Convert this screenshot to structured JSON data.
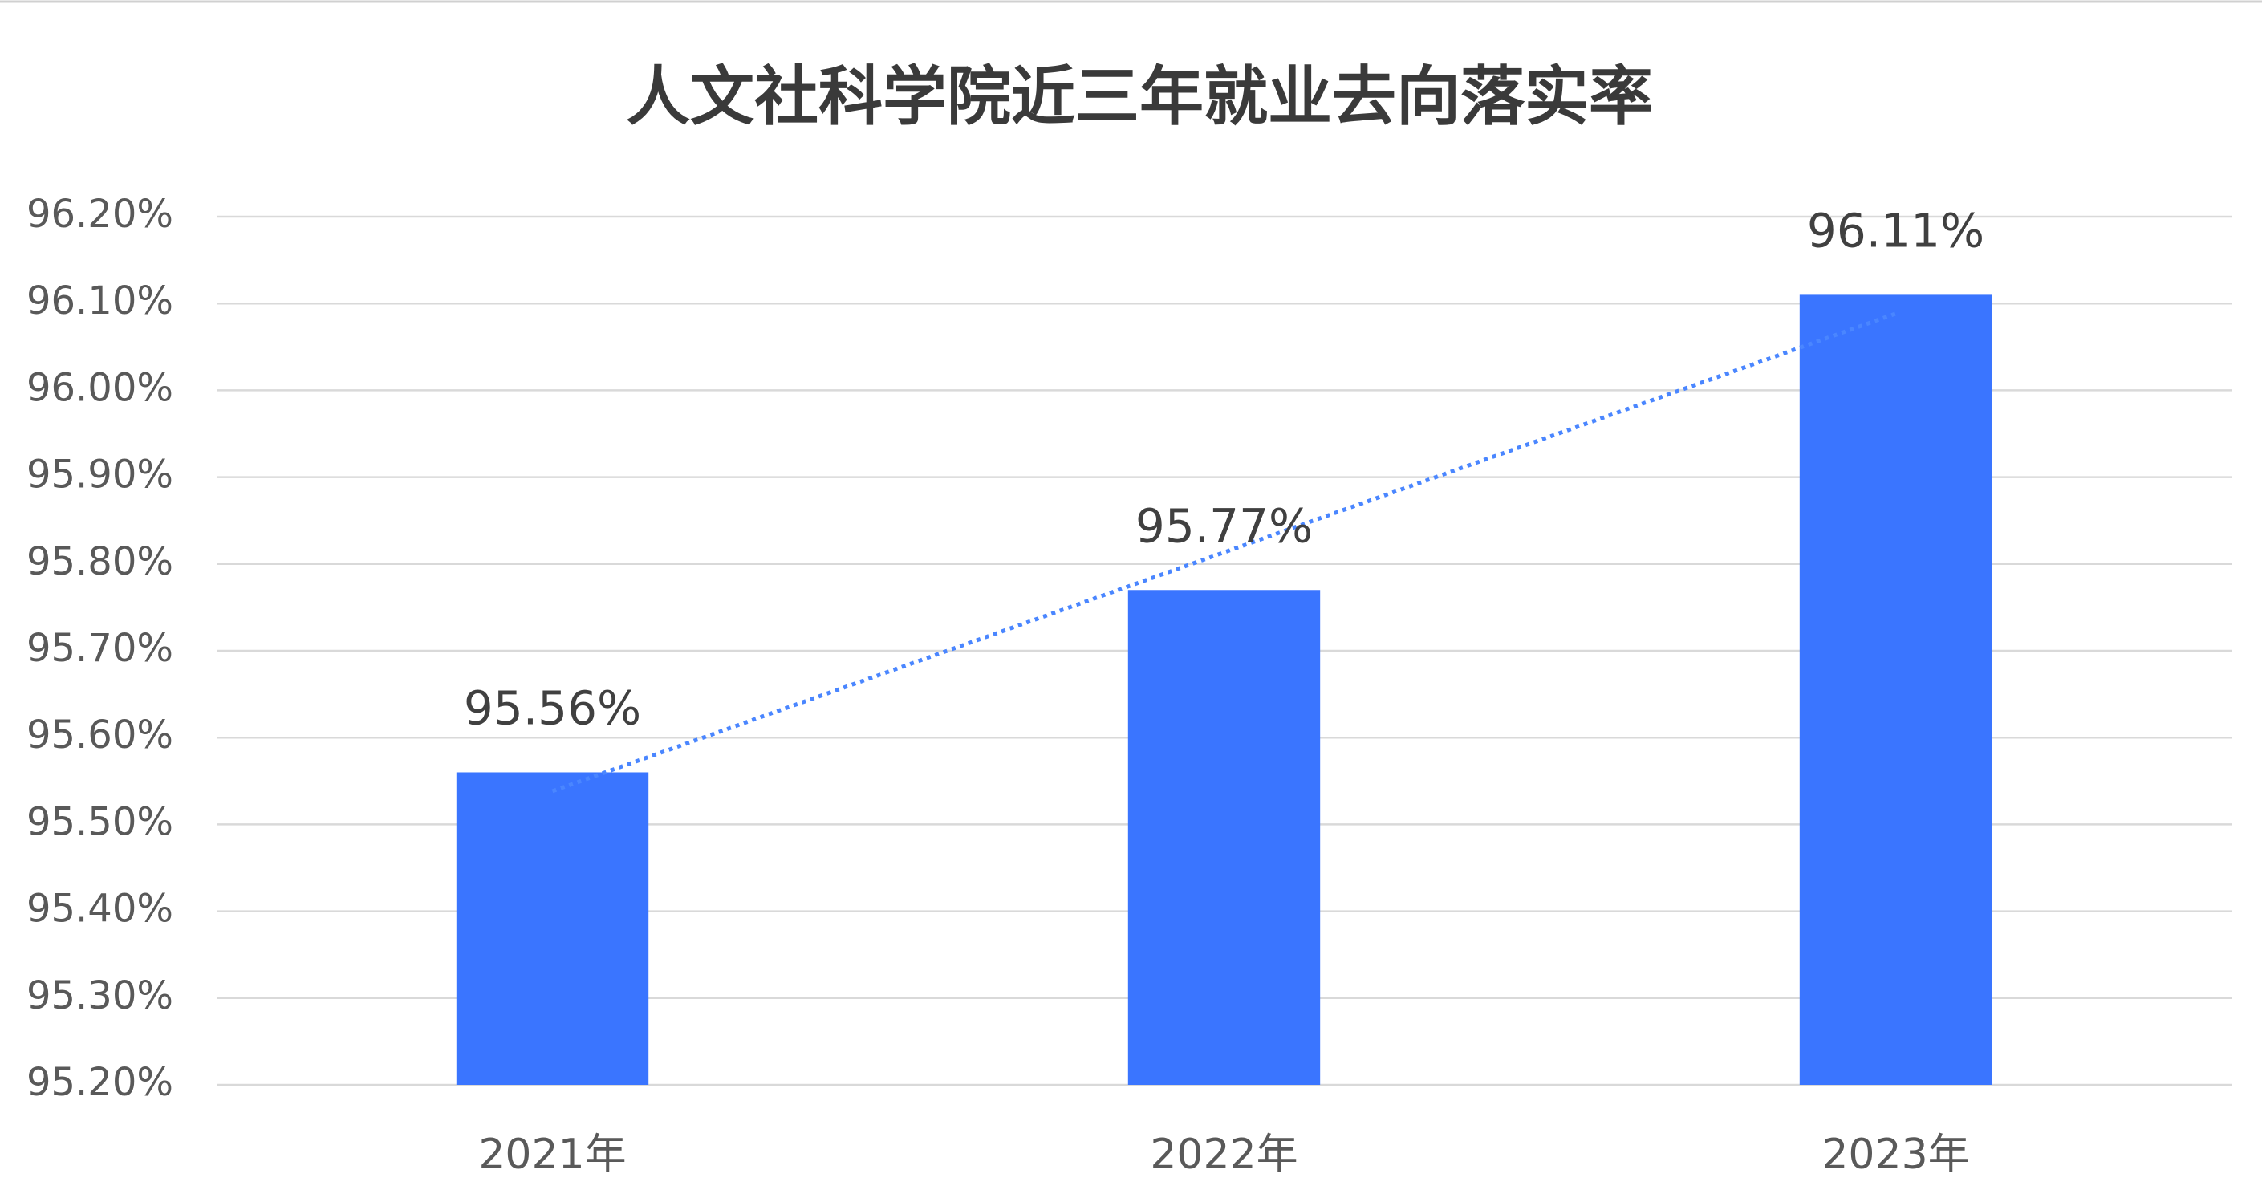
{
  "chart_data": {
    "type": "bar",
    "title": "人文社科学院近三年就业去向落实率",
    "categories": [
      "2021年",
      "2022年",
      "2023年"
    ],
    "values": [
      95.56,
      95.77,
      96.11
    ],
    "value_labels": [
      "95.56%",
      "95.77%",
      "96.11%"
    ],
    "color": "#3a75ff",
    "ylim": [
      95.2,
      96.2
    ],
    "yticks": [
      {
        "value": 95.2,
        "label": "95.20%"
      },
      {
        "value": 95.3,
        "label": "95.30%"
      },
      {
        "value": 95.4,
        "label": "95.40%"
      },
      {
        "value": 95.5,
        "label": "95.50%"
      },
      {
        "value": 95.6,
        "label": "95.60%"
      },
      {
        "value": 95.7,
        "label": "95.70%"
      },
      {
        "value": 95.8,
        "label": "95.80%"
      },
      {
        "value": 95.9,
        "label": "95.90%"
      },
      {
        "value": 96.0,
        "label": "96.00%"
      },
      {
        "value": 96.1,
        "label": "96.10%"
      },
      {
        "value": 96.2,
        "label": "96.20%"
      }
    ],
    "grid": true,
    "trendline": "linear"
  }
}
